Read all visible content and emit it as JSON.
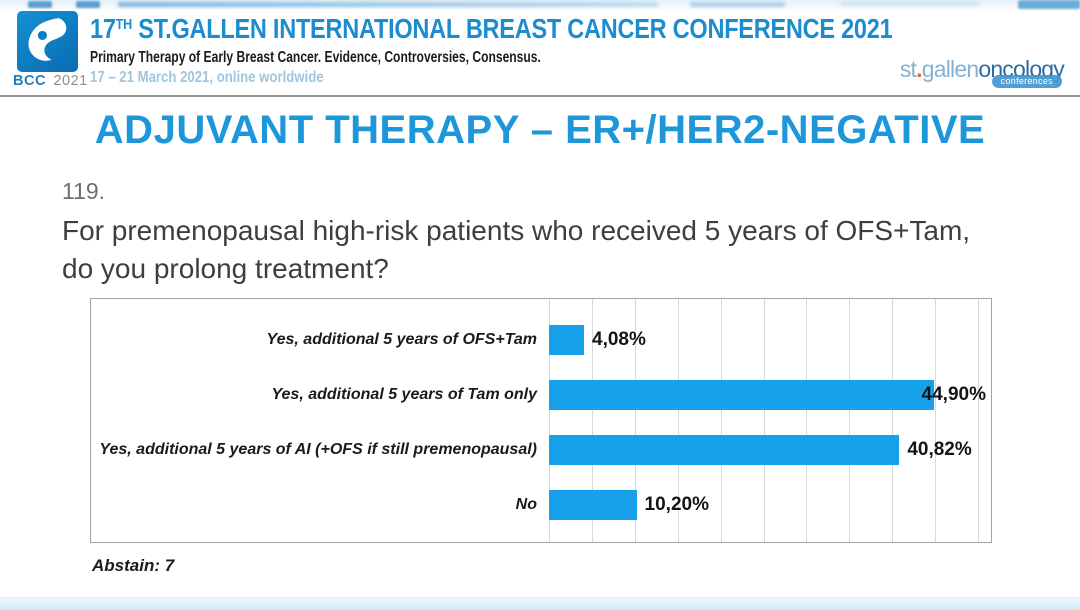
{
  "header": {
    "logo_bcc": "BCC",
    "logo_year": "2021",
    "title_prefix": "17",
    "title_sup": "TH",
    "title_rest": " ST.GALLEN INTERNATIONAL BREAST CANCER CONFERENCE 2021",
    "subtitle": "Primary Therapy of Early Breast Cancer. Evidence, Controversies, Consensus.",
    "dates": "17 – 21 March 2021, online worldwide",
    "brand_st": "st",
    "brand_dot": ".",
    "brand_gallen": "gallen",
    "brand_oncology": "oncology",
    "brand_badge": "conferences"
  },
  "slide": {
    "title": "ADJUVANT THERAPY – ER+/HER2-NEGATIVE",
    "question_number": "119.",
    "question_line1": "For premenopausal high-risk patients who received 5 years of OFS+Tam,",
    "question_line2": "do you prolong treatment?",
    "abstain": "Abstain: 7"
  },
  "chart_data": {
    "type": "bar",
    "orientation": "horizontal",
    "title": "",
    "xlabel": "",
    "ylabel": "",
    "categories": [
      "Yes, additional 5 years of OFS+Tam",
      "Yes, additional 5 years of Tam only",
      "Yes, additional 5 years of AI (+OFS if still premenopausal)",
      "No"
    ],
    "values": [
      4.08,
      44.9,
      40.82,
      10.2
    ],
    "value_labels": [
      "4,08%",
      "44,90%",
      "40,82%",
      "10,20%"
    ],
    "xlim": [
      0,
      51.5
    ],
    "gridline_step": 5,
    "grid": true,
    "legend": "none",
    "bar_color": "#17a1ea"
  },
  "colors": {
    "header_title_blue": "#1d8cce",
    "slide_title_blue": "#1e96da",
    "bar_blue": "#17a1ea",
    "logo_blue": "#0d7ec6",
    "dates_blue": "#9fc6dd",
    "gridline": "#d9d9d9",
    "chart_border": "#a3a3a3",
    "bottom_strip": "#cdeaf6",
    "badge_blue": "#4297d0",
    "brand_light_blue": "#85b2d2",
    "brand_dark_blue": "#2a6ca4",
    "brand_dot_orange": "#d96b2f"
  }
}
